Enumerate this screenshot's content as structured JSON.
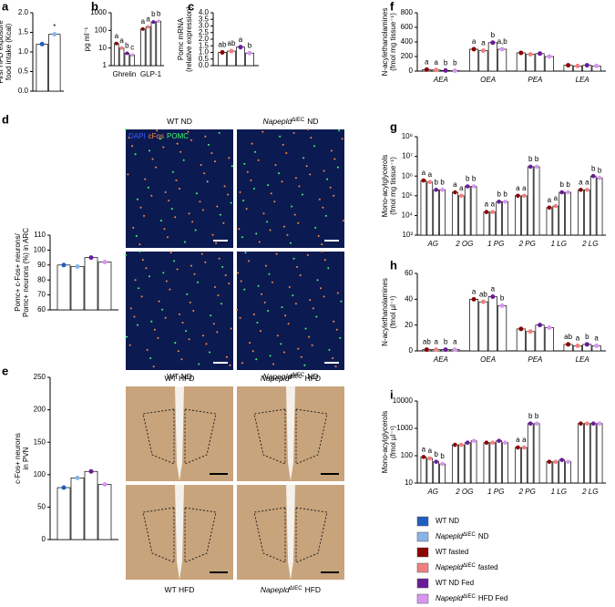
{
  "chart_data": [
    {
      "type": "bar",
      "panel": "a",
      "ylabel": [
        "First HFD exposure",
        "food intake (Kcal)"
      ],
      "ylim": [
        0,
        2
      ],
      "yticks": [
        {
          "value": 0,
          "label": "0.0"
        },
        {
          "value": 0.5,
          "label": "0.5"
        },
        {
          "value": 1,
          "label": "1.0"
        },
        {
          "value": 1.5,
          "label": "1.5"
        },
        {
          "value": 2,
          "label": "2.0"
        }
      ],
      "series": [
        {
          "color": "#1f5fbf",
          "values": [
            1.2
          ]
        },
        {
          "color": "#8ab4e8",
          "values": [
            1.45
          ],
          "letters": [
            "*"
          ]
        }
      ]
    },
    {
      "type": "bar",
      "panel": "b",
      "ylabel": [
        "pg ml⁻¹"
      ],
      "log": true,
      "ylim": [
        1,
        1000
      ],
      "yticks": [
        1,
        10,
        100,
        1000
      ],
      "categories": [
        "Ghrelin",
        "GLP-1"
      ],
      "series": [
        {
          "color": "#8b0000",
          "values": [
            18,
            120
          ],
          "letters": [
            "a",
            "a"
          ]
        },
        {
          "color": "#f08080",
          "values": [
            10,
            160
          ],
          "letters": [
            "a",
            "a"
          ]
        },
        {
          "color": "#6a1b9a",
          "values": [
            5,
            300
          ],
          "letters": [
            "b",
            "b"
          ]
        },
        {
          "color": "#d896f0",
          "values": [
            4,
            330
          ],
          "letters": [
            "c",
            "b"
          ]
        }
      ]
    },
    {
      "type": "bar",
      "panel": "c",
      "ylabel": [
        "Pomc mRNA",
        "(relative expression)"
      ],
      "ylim": [
        0,
        4
      ],
      "yticks": [
        {
          "value": 0,
          "label": "0.0"
        },
        {
          "value": 0.5,
          "label": "0.5"
        },
        {
          "value": 1,
          "label": "1.0"
        },
        {
          "value": 1.5,
          "label": "1.5"
        },
        {
          "value": 2,
          "label": "2.0"
        },
        {
          "value": 2.5,
          "label": "2.5"
        },
        {
          "value": 3,
          "label": "3.0"
        },
        {
          "value": 3.5,
          "label": "3.5"
        },
        {
          "value": 4,
          "label": "4.0"
        }
      ],
      "series": [
        {
          "color": "#8b0000",
          "values": [
            1.0
          ],
          "letters": [
            "ab"
          ]
        },
        {
          "color": "#f08080",
          "values": [
            1.1
          ],
          "letters": [
            "ab"
          ]
        },
        {
          "color": "#6a1b9a",
          "values": [
            1.4
          ],
          "letters": [
            "a"
          ]
        },
        {
          "color": "#d896f0",
          "values": [
            0.95
          ],
          "letters": [
            "b"
          ]
        }
      ]
    },
    {
      "type": "bar",
      "panel": "d",
      "ylabel": [
        "Pomc+ c-Fos+ neurons/",
        "Pomc+ neurons (%) in ARC"
      ],
      "ylim": [
        60,
        110
      ],
      "yticks": [
        60,
        70,
        80,
        90,
        100,
        110
      ],
      "series": [
        {
          "color": "#1f5fbf",
          "values": [
            90
          ]
        },
        {
          "color": "#8ab4e8",
          "values": [
            89
          ]
        },
        {
          "color": "#6a1b9a",
          "values": [
            95
          ]
        },
        {
          "color": "#d896f0",
          "values": [
            92
          ]
        }
      ]
    },
    {
      "type": "bar",
      "panel": "e",
      "ylabel": [
        "c-Fos+ neurons",
        "in PVN"
      ],
      "ylim": [
        0,
        250
      ],
      "yticks": [
        0,
        50,
        100,
        150,
        200,
        250
      ],
      "series": [
        {
          "color": "#1f5fbf",
          "values": [
            80
          ]
        },
        {
          "color": "#8ab4e8",
          "values": [
            95
          ]
        },
        {
          "color": "#6a1b9a",
          "values": [
            105
          ]
        },
        {
          "color": "#d896f0",
          "values": [
            85
          ]
        }
      ]
    },
    {
      "type": "bar",
      "panel": "f",
      "ylabel": [
        "N-acylethanolamines",
        "(fmol mg tissue⁻¹)"
      ],
      "ylim": [
        0,
        800
      ],
      "yticks": [
        0,
        200,
        400,
        600,
        800
      ],
      "categories": [
        "AEA",
        "OEA",
        "PEA",
        "LEA"
      ],
      "series": [
        {
          "color": "#8b0000",
          "values": [
            20,
            300,
            250,
            80
          ],
          "letters": [
            "a",
            "a",
            null,
            null
          ]
        },
        {
          "color": "#f08080",
          "values": [
            15,
            280,
            230,
            70
          ],
          "letters": [
            "a",
            "a",
            null,
            null
          ]
        },
        {
          "color": "#6a1b9a",
          "values": [
            8,
            390,
            240,
            80
          ],
          "letters": [
            "b",
            "b",
            null,
            null
          ]
        },
        {
          "color": "#d896f0",
          "values": [
            5,
            300,
            200,
            70
          ],
          "letters": [
            "b",
            "a,b",
            null,
            null
          ]
        }
      ]
    },
    {
      "type": "bar",
      "panel": "g",
      "ylabel": [
        "Mono-acylglycerols",
        "(fmol mg tissue⁻¹)"
      ],
      "log": true,
      "ylim": [
        1000,
        100000000
      ],
      "yticks": [
        {
          "value": 1000,
          "label": "10³"
        },
        {
          "value": 10000,
          "label": "10⁴"
        },
        {
          "value": 100000,
          "label": "10⁵"
        },
        {
          "value": 1000000,
          "label": "10⁶"
        },
        {
          "value": 10000000,
          "label": "10⁷"
        },
        {
          "value": 100000000,
          "label": "10⁸"
        }
      ],
      "categories": [
        "AG",
        "2 OG",
        "1 PG",
        "2 PG",
        "1 LG",
        "2 LG"
      ],
      "series": [
        {
          "color": "#8b0000",
          "values": [
            600000,
            150000,
            15000,
            100000,
            25000,
            200000
          ],
          "letters": [
            "a",
            "a",
            "a",
            "a",
            "a",
            "a"
          ]
        },
        {
          "color": "#f08080",
          "values": [
            500000,
            100000,
            15000,
            100000,
            30000,
            200000
          ],
          "letters": [
            "a",
            "a",
            "a",
            "a",
            "a",
            "a"
          ]
        },
        {
          "color": "#6a1b9a",
          "values": [
            200000,
            300000,
            50000,
            3000000,
            150000,
            1000000
          ],
          "letters": [
            "b",
            "b",
            "b",
            "b",
            "b",
            "b"
          ]
        },
        {
          "color": "#d896f0",
          "values": [
            200000,
            300000,
            50000,
            3000000,
            150000,
            800000
          ],
          "letters": [
            "b",
            "b",
            "b",
            "b",
            "b",
            "b"
          ]
        }
      ]
    },
    {
      "type": "bar",
      "panel": "h",
      "ylabel": [
        "N-acylethanolamines",
        "(fmol µl⁻¹)"
      ],
      "ylim": [
        0,
        60
      ],
      "yticks": [
        0,
        20,
        40,
        60
      ],
      "categories": [
        "AEA",
        "OEA",
        "PEA",
        "LEA"
      ],
      "series": [
        {
          "color": "#8b0000",
          "values": [
            1,
            40,
            17,
            5
          ],
          "letters": [
            "ab",
            "a",
            null,
            "ab"
          ]
        },
        {
          "color": "#f08080",
          "values": [
            1,
            38,
            15,
            4
          ],
          "letters": [
            "a",
            "ab",
            null,
            "a"
          ]
        },
        {
          "color": "#6a1b9a",
          "values": [
            1,
            42,
            20,
            5
          ],
          "letters": [
            "b",
            "a",
            null,
            "b"
          ]
        },
        {
          "color": "#d896f0",
          "values": [
            1,
            35,
            18,
            4
          ],
          "letters": [
            "a",
            "b",
            null,
            "a"
          ]
        }
      ]
    },
    {
      "type": "bar",
      "panel": "i",
      "ylabel": [
        "Mono-acylglycerols",
        "(fmol µl⁻¹)"
      ],
      "log": true,
      "ylim": [
        10,
        10000
      ],
      "yticks": [
        10,
        100,
        1000,
        10000
      ],
      "categories": [
        "AG",
        "2 OG",
        "1 PG",
        "2 PG",
        "1 LG",
        "2 LG"
      ],
      "series": [
        {
          "color": "#8b0000",
          "values": [
            90,
            250,
            300,
            200,
            60,
            1500
          ],
          "letters": [
            "a",
            null,
            null,
            "a",
            null,
            null
          ]
        },
        {
          "color": "#f08080",
          "values": [
            80,
            250,
            300,
            200,
            60,
            1500
          ],
          "letters": [
            "a",
            null,
            null,
            "a",
            null,
            null
          ]
        },
        {
          "color": "#6a1b9a",
          "values": [
            60,
            300,
            350,
            1500,
            70,
            1500
          ],
          "letters": [
            "b",
            null,
            null,
            "b",
            null,
            null
          ]
        },
        {
          "color": "#d896f0",
          "values": [
            50,
            350,
            300,
            1500,
            60,
            1500
          ],
          "letters": [
            "b",
            null,
            null,
            "b",
            null,
            null
          ]
        }
      ]
    }
  ],
  "micrographs": [
    {
      "stain": [
        "DAPI",
        "cFos",
        "POMC"
      ],
      "captions": [
        {
          "cond": "WT ND"
        },
        {
          "gene": "Napepld",
          "sup": "ΔIEC",
          "cond": "ND"
        },
        {
          "cond": "WT HFD"
        },
        {
          "gene": "Napepld",
          "sup": "ΔIEC",
          "cond": "HFD"
        }
      ]
    },
    {
      "captions": [
        {
          "cond": "WT ND"
        },
        {
          "gene": "Napepld",
          "sup": "ΔIEC",
          "cond": "ND"
        },
        {
          "cond": "WT HFD"
        },
        {
          "gene": "Napepld",
          "sup": "ΔIEC",
          "cond": "HFD"
        }
      ]
    }
  ],
  "legend": [
    {
      "name": "WT ND",
      "color": "#1f5fbf"
    },
    {
      "gene": "Napepld",
      "sup": "ΔIEC",
      "suffix": "ND",
      "color": "#8ab4e8"
    },
    {
      "name": "WT fasted",
      "color": "#8b0000"
    },
    {
      "gene": "Napepld",
      "sup": "ΔIEC",
      "suffix": "fasted",
      "color": "#f08080"
    },
    {
      "name": "WT ND Fed",
      "color": "#6a1b9a"
    },
    {
      "gene": "Napepld",
      "sup": "ΔIEC",
      "suffix": "HFD Fed",
      "color": "#d896f0"
    }
  ]
}
